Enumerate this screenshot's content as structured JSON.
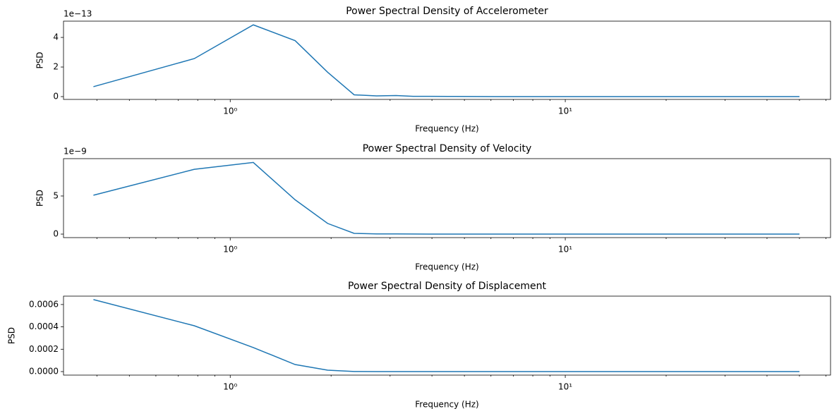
{
  "chart_data": [
    {
      "type": "line",
      "title": "Power Spectral Density of Accelerometer",
      "xlabel": "Frequency (Hz)",
      "ylabel": "PSD",
      "offset_text": "1e−13",
      "xscale": "log",
      "xlim": [
        0.318,
        61.9
      ],
      "xticks": [
        {
          "value": 1,
          "label": "10⁰"
        },
        {
          "value": 10,
          "label": "10¹"
        }
      ],
      "minor_xticks": [
        0.4,
        0.5,
        0.6,
        0.7,
        0.8,
        0.9,
        2,
        3,
        4,
        5,
        6,
        7,
        8,
        9,
        20,
        30,
        40,
        50,
        60
      ],
      "ylim": [
        -0.19,
        5.1
      ],
      "yticks": [
        0,
        2,
        4
      ],
      "x": [
        0.390625,
        0.78125,
        1.171875,
        1.5625,
        1.953125,
        2.34375,
        2.734375,
        3.125,
        3.515625,
        3.90625,
        4.6875,
        6.25,
        10,
        20,
        50
      ],
      "series": [
        {
          "name": "Accelerometer",
          "color": "#1f77b4",
          "values": [
            0.67,
            2.57,
            4.85,
            3.78,
            1.65,
            0.12,
            0.05,
            0.07,
            0.02,
            0.02,
            0.01,
            0,
            0,
            0,
            0
          ]
        }
      ]
    },
    {
      "type": "line",
      "title": "Power Spectral Density of Velocity",
      "xlabel": "Frequency (Hz)",
      "ylabel": "PSD",
      "offset_text": "1e−9",
      "xscale": "log",
      "xlim": [
        0.318,
        61.9
      ],
      "xticks": [
        {
          "value": 1,
          "label": "10⁰"
        },
        {
          "value": 10,
          "label": "10¹"
        }
      ],
      "minor_xticks": [
        0.4,
        0.5,
        0.6,
        0.7,
        0.8,
        0.9,
        2,
        3,
        4,
        5,
        6,
        7,
        8,
        9,
        20,
        30,
        40,
        50,
        60
      ],
      "ylim": [
        -0.46,
        9.9
      ],
      "yticks": [
        0,
        5
      ],
      "x": [
        0.390625,
        0.78125,
        1.171875,
        1.5625,
        1.953125,
        2.34375,
        2.734375,
        3.125,
        3.515625,
        3.90625,
        4.6875,
        6.25,
        10,
        20,
        50
      ],
      "series": [
        {
          "name": "Velocity",
          "color": "#1f77b4",
          "values": [
            5.1,
            8.5,
            9.4,
            4.5,
            1.4,
            0.1,
            0.03,
            0.02,
            0.01,
            0,
            0,
            0,
            0,
            0,
            0
          ]
        }
      ]
    },
    {
      "type": "line",
      "title": "Power Spectral Density of Displacement",
      "xlabel": "Frequency (Hz)",
      "ylabel": "PSD",
      "xscale": "log",
      "xlim": [
        0.318,
        61.9
      ],
      "xticks": [
        {
          "value": 1,
          "label": "10⁰"
        },
        {
          "value": 10,
          "label": "10¹"
        }
      ],
      "minor_xticks": [
        0.4,
        0.5,
        0.6,
        0.7,
        0.8,
        0.9,
        2,
        3,
        4,
        5,
        6,
        7,
        8,
        9,
        20,
        30,
        40,
        50,
        60
      ],
      "ylim": [
        -3.15e-05,
        0.000675
      ],
      "yticks": [
        {
          "value": 0,
          "label": "0.0000"
        },
        {
          "value": 0.0002,
          "label": "0.0002"
        },
        {
          "value": 0.0004,
          "label": "0.0004"
        },
        {
          "value": 0.0006,
          "label": "0.0006"
        }
      ],
      "x": [
        0.390625,
        0.78125,
        1.171875,
        1.5625,
        1.953125,
        2.34375,
        2.734375,
        3.125,
        3.515625,
        3.90625,
        4.6875,
        6.25,
        10,
        20,
        50
      ],
      "series": [
        {
          "name": "Displacement",
          "color": "#1f77b4",
          "values": [
            0.000644,
            0.00041,
            0.000215,
            6.3e-05,
            1.3e-05,
            1e-06,
            0,
            0,
            0,
            0,
            0,
            0,
            0,
            0,
            0
          ]
        }
      ]
    }
  ]
}
